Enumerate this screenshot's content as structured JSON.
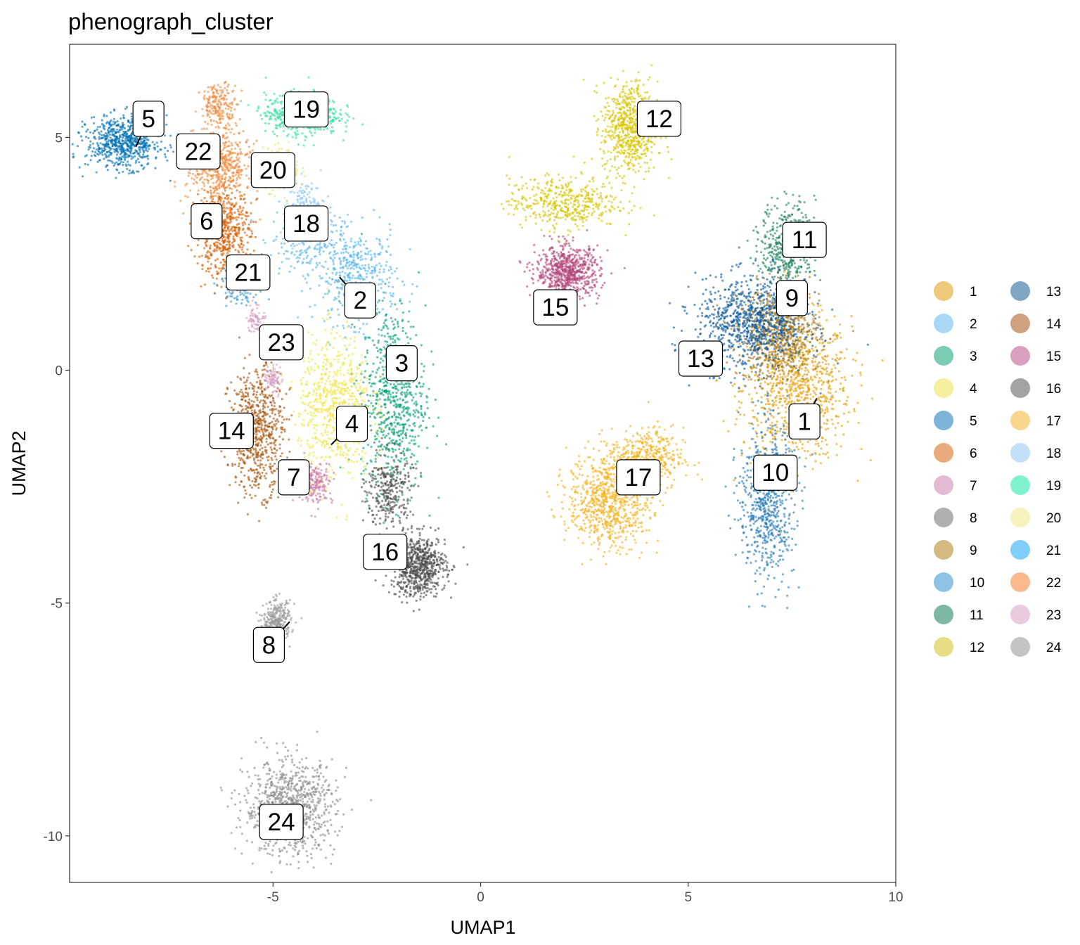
{
  "chart_data": {
    "type": "scatter",
    "title": "phenograph_cluster",
    "xlabel": "UMAP1",
    "ylabel": "UMAP2",
    "xlim": [
      -9.9,
      10.0
    ],
    "ylim": [
      -11.0,
      7.0
    ],
    "x_ticks": [
      {
        "value": -5,
        "label": "-5"
      },
      {
        "value": 0,
        "label": "0"
      },
      {
        "value": 5,
        "label": "5"
      },
      {
        "value": 10,
        "label": "10"
      }
    ],
    "y_ticks": [
      {
        "value": 5,
        "label": "5"
      },
      {
        "value": 0,
        "label": "0"
      },
      {
        "value": -5,
        "label": "-5"
      },
      {
        "value": -10,
        "label": "-10"
      }
    ],
    "grid": false,
    "legend_position": "right",
    "legend_columns": 2,
    "clusters": [
      {
        "id": "1",
        "color": "#E69F00",
        "label": [
          7.8,
          -1.1
        ],
        "anchor": [
          8.1,
          -0.6
        ],
        "blobs": [
          [
            7.6,
            -0.4,
            1.2,
            1.4,
            900
          ]
        ]
      },
      {
        "id": "2",
        "color": "#56B4E9",
        "label": [
          -2.9,
          1.5
        ],
        "anchor": [
          -3.4,
          2.0
        ],
        "blobs": [
          [
            -3.0,
            2.0,
            0.9,
            0.9,
            450
          ],
          [
            -4.2,
            2.8,
            0.8,
            0.6,
            200
          ]
        ]
      },
      {
        "id": "3",
        "color": "#009E73",
        "label": [
          -1.9,
          0.15
        ],
        "anchor": [
          -1.9,
          0.15
        ],
        "blobs": [
          [
            -2.1,
            -0.6,
            0.7,
            1.8,
            700
          ]
        ]
      },
      {
        "id": "4",
        "color": "#F0E442",
        "label": [
          -3.1,
          -1.15
        ],
        "anchor": [
          -3.6,
          -1.6
        ],
        "blobs": [
          [
            -3.5,
            -0.8,
            0.8,
            1.4,
            700
          ]
        ]
      },
      {
        "id": "5",
        "color": "#0072B2",
        "label": [
          -8.0,
          5.4
        ],
        "anchor": [
          -8.3,
          4.8
        ],
        "blobs": [
          [
            -8.6,
            4.9,
            0.8,
            0.5,
            700
          ]
        ]
      },
      {
        "id": "6",
        "color": "#D55E00",
        "label": [
          -6.6,
          3.2
        ],
        "anchor": [
          -6.6,
          3.2
        ],
        "blobs": [
          [
            -6.2,
            3.0,
            0.6,
            0.9,
            600
          ]
        ]
      },
      {
        "id": "7",
        "color": "#CC79A7",
        "label": [
          -4.5,
          -2.3
        ],
        "anchor": [
          -4.5,
          -2.3
        ],
        "blobs": [
          [
            -4.0,
            -2.4,
            0.4,
            0.4,
            200
          ]
        ]
      },
      {
        "id": "8",
        "color": "#999999",
        "label": [
          -5.1,
          -5.9
        ],
        "anchor": [
          -4.6,
          -5.4
        ],
        "blobs": [
          [
            -4.9,
            -5.4,
            0.3,
            0.4,
            300
          ]
        ]
      },
      {
        "id": "9",
        "color": "#A6761D",
        "label": [
          7.5,
          1.55
        ],
        "anchor": [
          7.5,
          1.55
        ],
        "blobs": [
          [
            7.2,
            0.8,
            0.9,
            0.9,
            700
          ]
        ]
      },
      {
        "id": "10",
        "color": "#1F78B4",
        "label": [
          7.1,
          -2.2
        ],
        "anchor": [
          7.1,
          -2.2
        ],
        "blobs": [
          [
            6.9,
            -2.8,
            0.6,
            1.5,
            700
          ]
        ]
      },
      {
        "id": "11",
        "color": "#1B7F5A",
        "label": [
          7.8,
          2.8
        ],
        "anchor": [
          7.8,
          2.8
        ],
        "blobs": [
          [
            7.4,
            2.7,
            0.6,
            0.8,
            450
          ]
        ]
      },
      {
        "id": "12",
        "color": "#D6C500",
        "label": [
          4.3,
          5.4
        ],
        "anchor": [
          4.3,
          5.4
        ],
        "blobs": [
          [
            3.6,
            5.2,
            0.6,
            0.9,
            700
          ],
          [
            2.0,
            3.6,
            1.2,
            0.5,
            450
          ]
        ]
      },
      {
        "id": "13",
        "color": "#08589E",
        "label": [
          5.3,
          0.25
        ],
        "anchor": [
          5.3,
          0.25
        ],
        "blobs": [
          [
            6.5,
            1.0,
            1.2,
            0.9,
            900
          ]
        ]
      },
      {
        "id": "14",
        "color": "#A6540A",
        "label": [
          -6.0,
          -1.3
        ],
        "anchor": [
          -6.0,
          -1.3
        ],
        "blobs": [
          [
            -5.4,
            -1.3,
            0.6,
            1.2,
            700
          ]
        ]
      },
      {
        "id": "15",
        "color": "#B2457A",
        "label": [
          1.8,
          1.35
        ],
        "anchor": [
          1.8,
          1.35
        ],
        "blobs": [
          [
            2.1,
            2.1,
            0.7,
            0.5,
            700
          ]
        ]
      },
      {
        "id": "16",
        "color": "#4A4A4A",
        "label": [
          -2.3,
          -3.9
        ],
        "anchor": [
          -2.3,
          -3.9
        ],
        "blobs": [
          [
            -1.5,
            -4.2,
            0.6,
            0.6,
            700
          ],
          [
            -2.2,
            -2.6,
            0.5,
            0.8,
            300
          ]
        ]
      },
      {
        "id": "17",
        "color": "#F2B11B",
        "label": [
          3.8,
          -2.3
        ],
        "anchor": [
          3.8,
          -2.3
        ],
        "blobs": [
          [
            3.1,
            -2.8,
            0.9,
            0.9,
            800
          ],
          [
            4.0,
            -1.9,
            0.8,
            0.6,
            400
          ]
        ]
      },
      {
        "id": "18",
        "color": "#8EC5F0",
        "label": [
          -4.2,
          3.15
        ],
        "anchor": [
          -4.2,
          3.15
        ],
        "blobs": [
          [
            -4.2,
            3.4,
            0.4,
            0.6,
            250
          ]
        ]
      },
      {
        "id": "19",
        "color": "#2FE0A5",
        "label": [
          -4.2,
          5.6
        ],
        "anchor": [
          -4.2,
          5.6
        ],
        "blobs": [
          [
            -4.3,
            5.5,
            0.8,
            0.4,
            600
          ]
        ]
      },
      {
        "id": "20",
        "color": "#E8E27A",
        "label": [
          -5.0,
          4.3
        ],
        "anchor": [
          -5.0,
          4.3
        ],
        "blobs": [
          [
            -4.8,
            4.3,
            0.4,
            0.4,
            250
          ]
        ]
      },
      {
        "id": "21",
        "color": "#3A96D6",
        "label": [
          -5.6,
          2.1
        ],
        "anchor": [
          -5.6,
          2.1
        ],
        "blobs": [
          [
            -5.8,
            1.9,
            0.4,
            0.4,
            200
          ]
        ]
      },
      {
        "id": "22",
        "color": "#F08A3E",
        "label": [
          -6.8,
          4.7
        ],
        "anchor": [
          -6.8,
          4.7
        ],
        "blobs": [
          [
            -6.3,
            4.4,
            0.7,
            0.7,
            500
          ],
          [
            -6.3,
            5.7,
            0.4,
            0.4,
            200
          ]
        ]
      },
      {
        "id": "23",
        "color": "#D4A0C4",
        "label": [
          -4.8,
          0.6
        ],
        "anchor": [
          -4.8,
          0.6
        ],
        "blobs": [
          [
            -5.4,
            1.1,
            0.2,
            0.3,
            80
          ],
          [
            -5.0,
            -0.2,
            0.2,
            0.3,
            80
          ]
        ]
      },
      {
        "id": "24",
        "color": "#8A8A8A",
        "label": [
          -4.8,
          -9.7
        ],
        "anchor": [
          -4.8,
          -9.7
        ],
        "blobs": [
          [
            -4.6,
            -9.4,
            1.0,
            0.9,
            900
          ]
        ]
      }
    ],
    "legend": [
      {
        "label": "1",
        "color": "#F0C97A"
      },
      {
        "label": "2",
        "color": "#A8D8F4"
      },
      {
        "label": "3",
        "color": "#7ACDB3"
      },
      {
        "label": "4",
        "color": "#F5EE9C"
      },
      {
        "label": "5",
        "color": "#7DB5D8"
      },
      {
        "label": "6",
        "color": "#E9AB7D"
      },
      {
        "label": "7",
        "color": "#E5BBD4"
      },
      {
        "label": "8",
        "color": "#B0B0B0"
      },
      {
        "label": "9",
        "color": "#D4B980"
      },
      {
        "label": "10",
        "color": "#8FC3E6"
      },
      {
        "label": "11",
        "color": "#7CB8A5"
      },
      {
        "label": "12",
        "color": "#E6DE85"
      },
      {
        "label": "13",
        "color": "#7FA6C4"
      },
      {
        "label": "14",
        "color": "#CFA17E"
      },
      {
        "label": "15",
        "color": "#D89FBE"
      },
      {
        "label": "16",
        "color": "#A3A3A3"
      },
      {
        "label": "17",
        "color": "#F8D68C"
      },
      {
        "label": "18",
        "color": "#C2E0F7"
      },
      {
        "label": "19",
        "color": "#7FF2CF"
      },
      {
        "label": "20",
        "color": "#F5F2BC"
      },
      {
        "label": "21",
        "color": "#80CFFA"
      },
      {
        "label": "22",
        "color": "#FBBA8E"
      },
      {
        "label": "23",
        "color": "#E9CADF"
      },
      {
        "label": "24",
        "color": "#C4C4C4"
      }
    ]
  }
}
